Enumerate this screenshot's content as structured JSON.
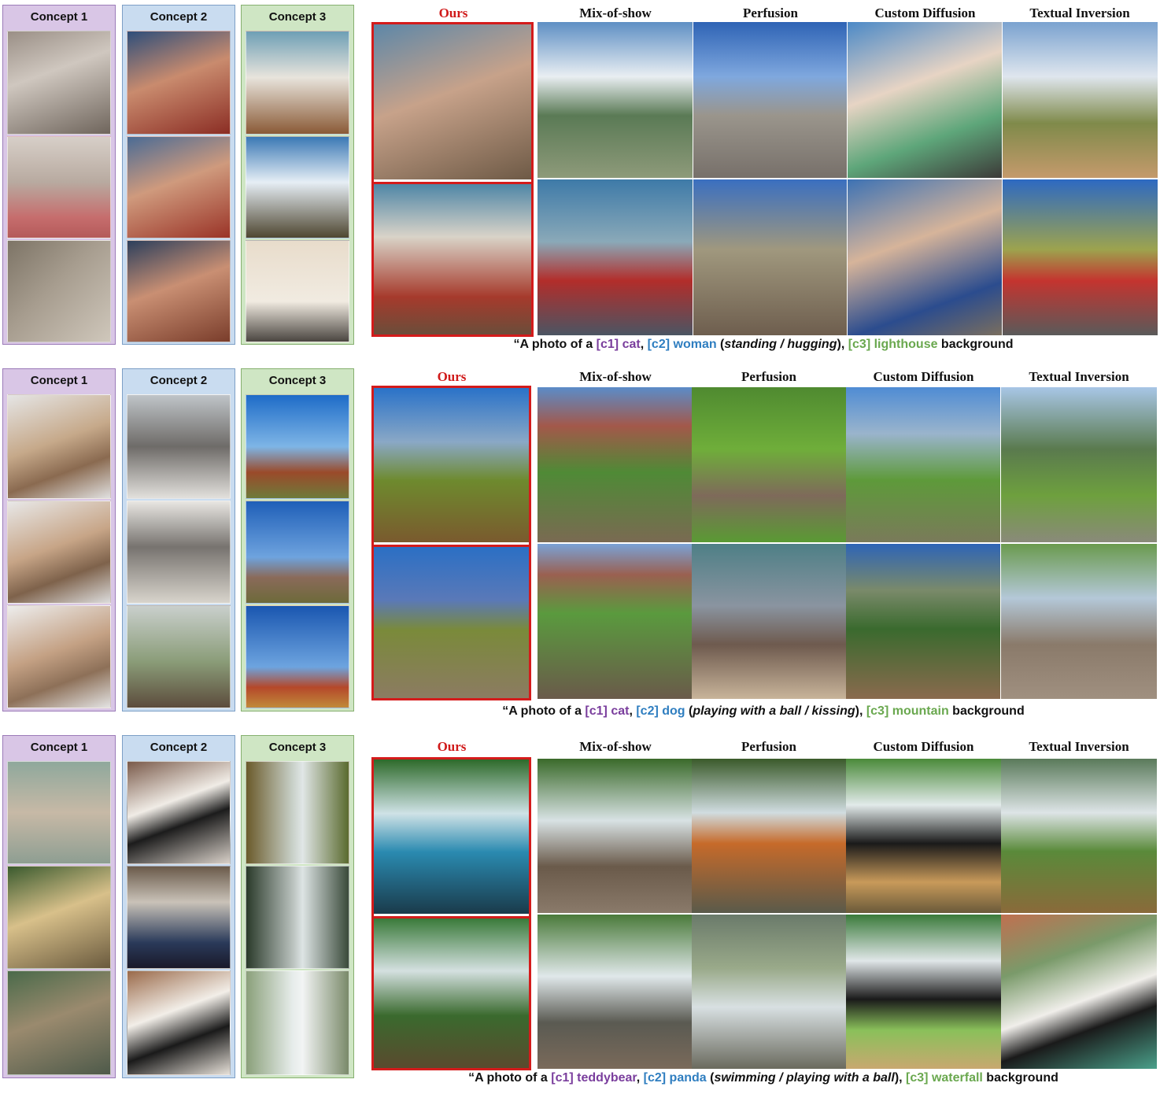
{
  "blocks": [
    {
      "concepts": [
        "Concept 1",
        "Concept 2",
        "Concept 3"
      ],
      "methods": [
        "Ours",
        "Mix-of-show",
        "Perfusion",
        "Custom Diffusion",
        "Textual Inversion"
      ],
      "caption": {
        "prefix": "“A photo of a ",
        "c1_tag": "[c1] cat",
        "sep1": ", ",
        "c2_tag": "[c2] woman",
        "mid_open": " (",
        "action": "standing / hugging",
        "mid_close": "), ",
        "c3_tag": "[c3] lighthouse",
        "suffix": " background"
      }
    },
    {
      "concepts": [
        "Concept 1",
        "Concept 2",
        "Concept 3"
      ],
      "methods": [
        "Ours",
        "Mix-of-show",
        "Perfusion",
        "Custom Diffusion",
        "Textual Inversion"
      ],
      "caption": {
        "prefix": "“A photo of a ",
        "c1_tag": "[c1] cat",
        "sep1": ", ",
        "c2_tag": "[c2] dog",
        "mid_open": " (",
        "action": "playing with a ball / kissing",
        "mid_close": "), ",
        "c3_tag": "[c3] mountain",
        "suffix": " background"
      }
    },
    {
      "concepts": [
        "Concept 1",
        "Concept 2",
        "Concept 3"
      ],
      "methods": [
        "Ours",
        "Mix-of-show",
        "Perfusion",
        "Custom Diffusion",
        "Textual Inversion"
      ],
      "caption": {
        "prefix": "“A photo of a ",
        "c1_tag": "[c1] teddybear",
        "sep1": ", ",
        "c2_tag": "[c2] panda",
        "mid_open": " (",
        "action": "swimming / playing with a ball",
        "mid_close": "), ",
        "c3_tag": "[c3] waterfall",
        "suffix": " background"
      }
    }
  ],
  "colors": {
    "ours_header": "#d01a1a",
    "ours_border": "#d41b1b",
    "concept1_panel": "#d9c6e6",
    "concept2_panel": "#c9dcf0",
    "concept3_panel": "#cfe6c4",
    "c1_text": "#7a3e9d",
    "c2_text": "#2f7ec0",
    "c3_text": "#6aa84f"
  }
}
